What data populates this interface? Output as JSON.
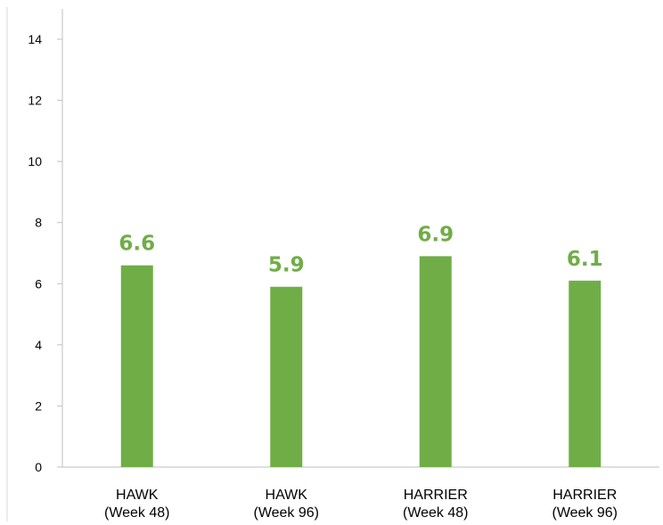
{
  "chart_data": {
    "type": "bar",
    "title": "",
    "xlabel": "",
    "ylabel": "",
    "ylim": [
      0,
      14
    ],
    "yticks": [
      0,
      2,
      4,
      6,
      8,
      10,
      12,
      14
    ],
    "grid": false,
    "legend": "none",
    "categories": [
      [
        "HAWK",
        "(Week 48)"
      ],
      [
        "HAWK",
        "(Week 96)"
      ],
      [
        "HARRIER",
        "(Week 48)"
      ],
      [
        "HARRIER",
        "(Week 96)"
      ]
    ],
    "values": [
      6.6,
      5.9,
      6.9,
      6.1
    ],
    "data_labels": [
      "6.6",
      "5.9",
      "6.9",
      "6.1"
    ],
    "colors": {
      "bar": "#70AD47",
      "data_label": "#70AD47",
      "axis": "#BFBFBF"
    }
  }
}
